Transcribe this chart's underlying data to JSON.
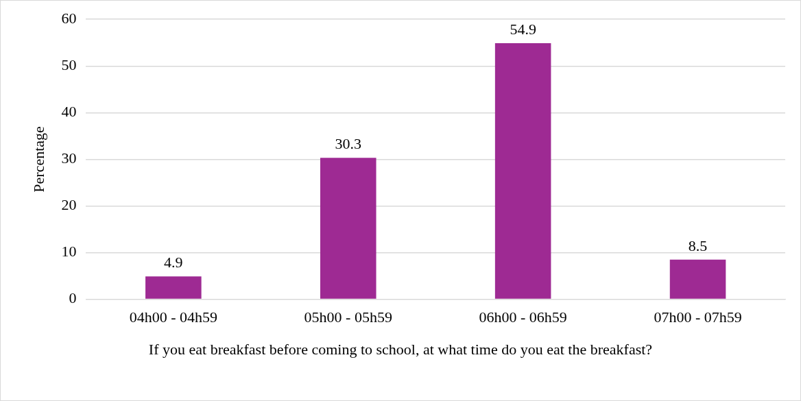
{
  "chart_data": {
    "type": "bar",
    "xlabel": "If you eat breakfast before coming to school, at what time do you eat the breakfast?",
    "ylabel": "Percentage",
    "categories": [
      "04h00 - 04h59",
      "05h00 - 05h59",
      "06h00 - 06h59",
      "07h00 - 07h59"
    ],
    "values": [
      4.9,
      30.3,
      54.9,
      8.5
    ],
    "color": "#9e2a93",
    "ylim": [
      0,
      60
    ],
    "yticks": [
      0,
      10,
      20,
      30,
      40,
      50,
      60
    ],
    "grid": "y",
    "legend": false,
    "data_labels": true
  }
}
